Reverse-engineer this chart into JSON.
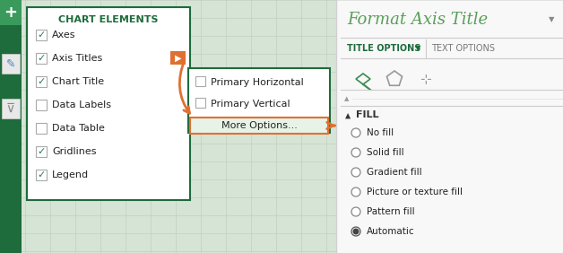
{
  "bg_color": "#d6e4d6",
  "grid_color": "#c0d0c0",
  "panel_bg": "#ffffff",
  "chart_elements_header": "CHART ELEMENTS",
  "chart_elements_items": [
    "Axes",
    "Axis Titles",
    "Chart Title",
    "Data Labels",
    "Data Table",
    "Gridlines",
    "Legend"
  ],
  "chart_elements_checked": [
    true,
    true,
    true,
    false,
    false,
    true,
    true
  ],
  "submenu_items": [
    "Primary Horizontal",
    "Primary Vertical",
    "More Options..."
  ],
  "format_title": "Format Axis Title",
  "title_options": "TITLE OPTIONS",
  "text_options": "TEXT OPTIONS",
  "fill_header": "FILL",
  "fill_items": [
    "No fill",
    "Solid fill",
    "Gradient fill",
    "Picture or texture fill",
    "Pattern fill",
    "Automatic"
  ],
  "fill_selected": 5,
  "dark_green": "#1e6b3c",
  "orange": "#e07030",
  "light_green_bg": "#e8f3e8",
  "checkbox_color": "#2e7d52",
  "format_title_color": "#5a9e5a",
  "sidebar_bg": "#f8f8f8",
  "sidebar_border": "#e0e0e0",
  "tab_separator": "#cccccc",
  "icon_green": "#3a8c50",
  "icon_gray": "#999999",
  "fill_triangle_color": "#333333",
  "radio_border": "#888888",
  "radio_fill_color": "#444444",
  "text_color": "#222222",
  "fill_text_color": "#333333"
}
